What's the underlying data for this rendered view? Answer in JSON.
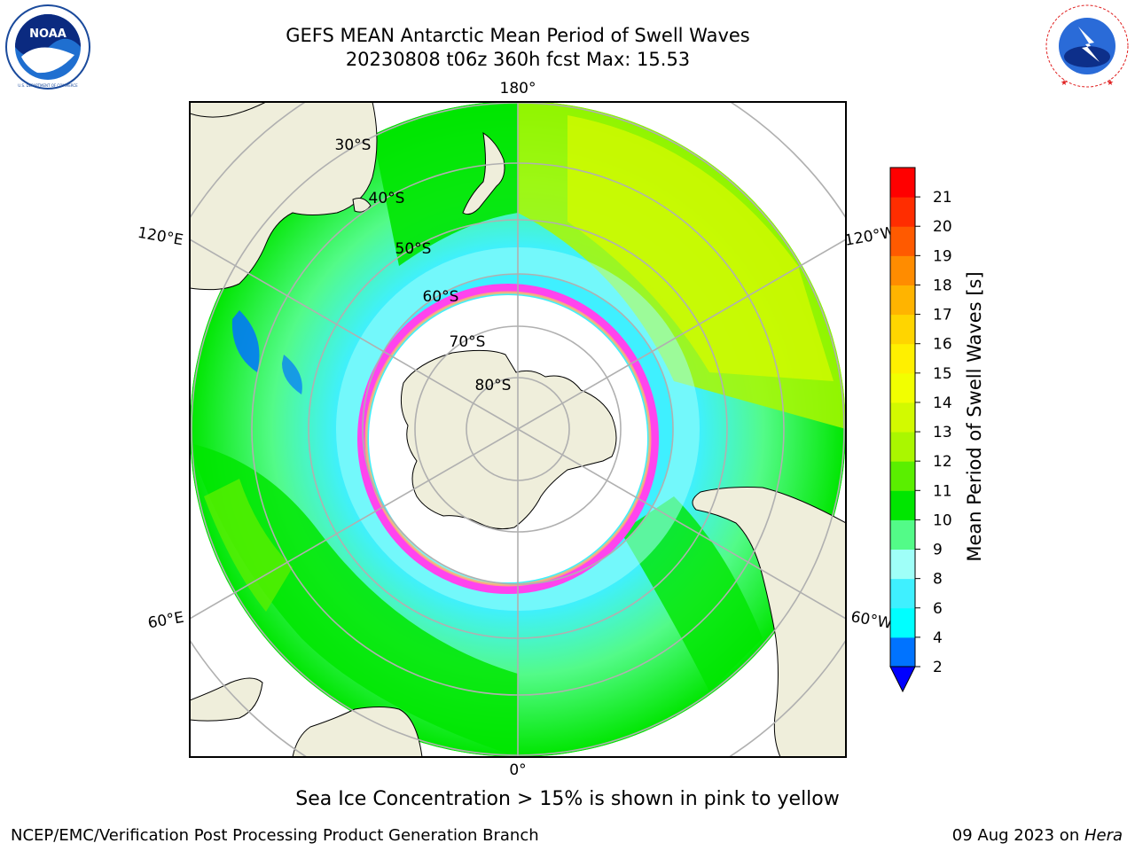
{
  "title": {
    "line1": "GEFS MEAN Antarctic Mean Period of Swell Waves",
    "line2": "20230808 t06z 360h fcst   Max: 15.53"
  },
  "logos": {
    "left": {
      "name": "NOAA",
      "text": "NOAA",
      "ring_text": "NATIONAL OCEANIC AND ATMOSPHERIC ADMINISTRATION · U.S. DEPARTMENT OF COMMERCE"
    },
    "right": {
      "name": "National Weather Service",
      "ring_text": "NATIONAL WEATHER SERVICE"
    }
  },
  "map": {
    "projection": "south polar stereographic",
    "longitude_labels": {
      "top": "180°",
      "bottom": "0°",
      "upper_left": "120°E",
      "upper_right": "120°W",
      "lower_left": "60°E",
      "lower_right": "60°W"
    },
    "latitude_labels": [
      "30°S",
      "40°S",
      "50°S",
      "60°S",
      "70°S",
      "80°S"
    ],
    "colors": {
      "land": "#efeedb",
      "ice_free_gap": "#ffffff",
      "grid": "#b0b0b0",
      "coast": "#000000"
    },
    "sea_ice_colors": [
      "#ff66cc",
      "#ff44ee",
      "#ffb86b",
      "#ffee66"
    ]
  },
  "colorbar": {
    "label": "Mean Period of Swell Waves [s]",
    "ticks": [
      "2",
      "4",
      "6",
      "8",
      "9",
      "10",
      "11",
      "12",
      "13",
      "14",
      "15",
      "16",
      "17",
      "18",
      "19",
      "20",
      "21"
    ],
    "colors": [
      "#0073ff",
      "#00ffff",
      "#3ff0ff",
      "#9ffff8",
      "#53fb88",
      "#00e600",
      "#5aef00",
      "#aaf700",
      "#d2fa00",
      "#f2ff00",
      "#fff000",
      "#ffd500",
      "#ffb400",
      "#ff8c00",
      "#ff5a00",
      "#ff2d00",
      "#ff0000"
    ],
    "extend_color": "#0000ff"
  },
  "caption": "Sea Ice Concentration > 15% is shown in pink to yellow",
  "footer": {
    "left": "NCEP/EMC/Verification Post Processing Product Generation Branch",
    "right_prefix": "09 Aug 2023 on ",
    "right_host": "Hera"
  }
}
